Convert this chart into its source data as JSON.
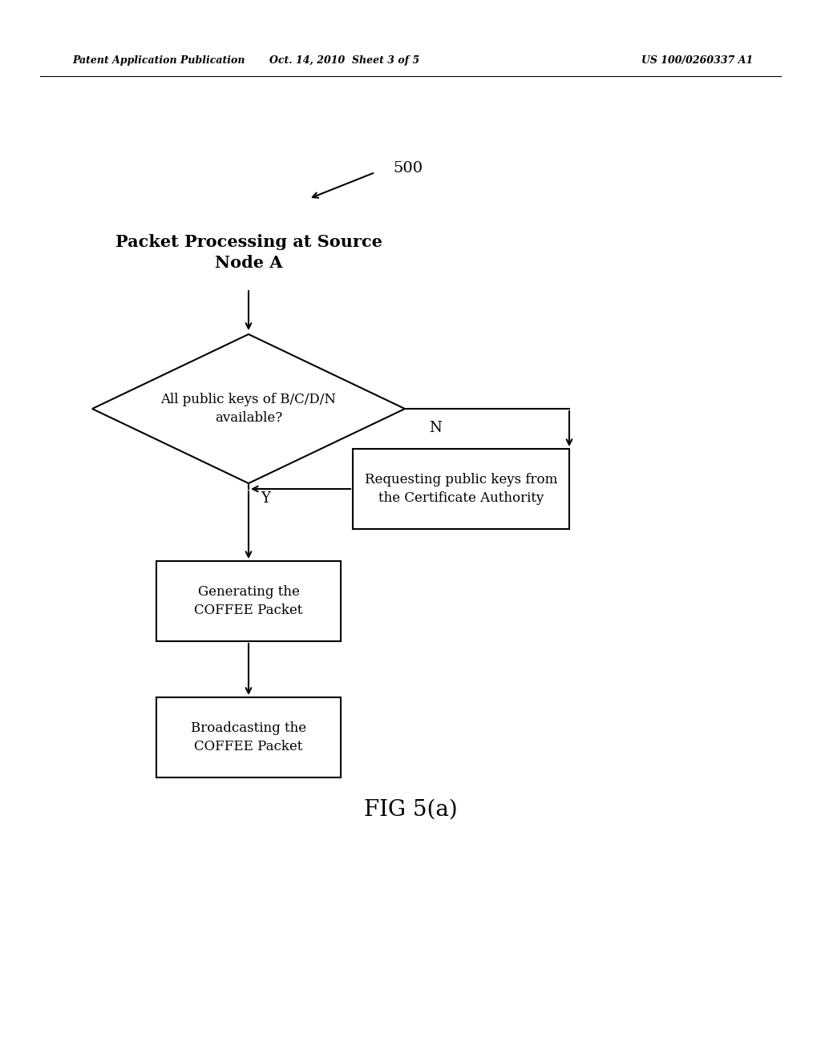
{
  "bg_color": "#ffffff",
  "text_color": "#000000",
  "header_left": "Patent Application Publication",
  "header_center": "Oct. 14, 2010  Sheet 3 of 5",
  "header_right": "US 100/0260337 A1",
  "fig_label": "FIG 5(a)",
  "diagram_label": "500",
  "title_text": "Packet Processing at Source\nNode A",
  "diamond_text": "All public keys of B/C/D/N\navailable?",
  "box1_text": "Requesting public keys from\nthe Certificate Authority",
  "box2_text": "Generating the\nCOFFEE Packet",
  "box3_text": "Broadcasting the\nCOFFEE Packet",
  "label_Y": "Y",
  "label_N": "N",
  "header_fontsize": 9,
  "title_fontsize": 15,
  "body_fontsize": 13,
  "fig_label_fontsize": 20
}
